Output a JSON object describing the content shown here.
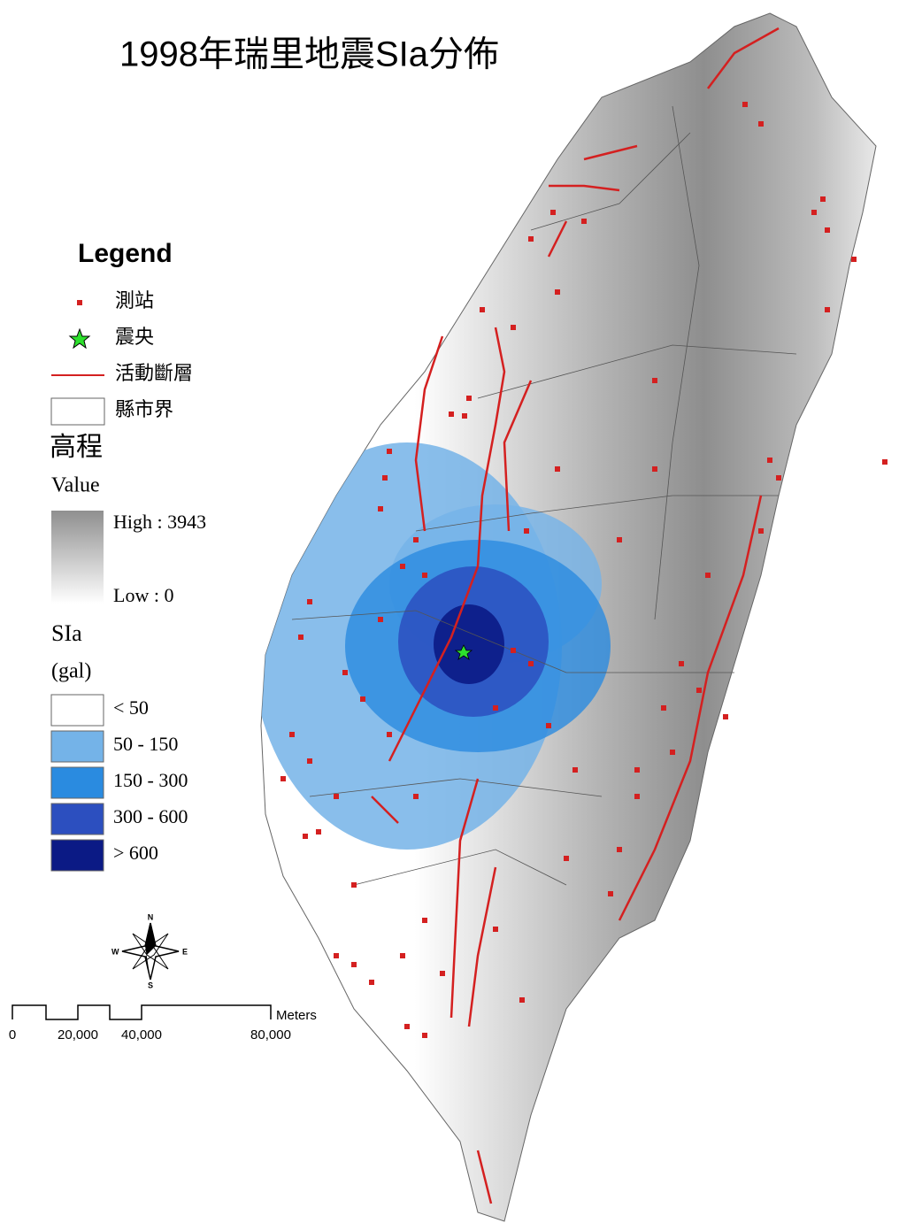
{
  "title": "1998年瑞里地震SIa分佈",
  "legend": {
    "title": "Legend",
    "items": [
      "測站",
      "震央",
      "活動斷層",
      "縣市界"
    ]
  },
  "elevation": {
    "title": "高程",
    "subtitle": "Value",
    "high": "High : 3943",
    "low": "Low : 0"
  },
  "sia": {
    "title": "SIa",
    "unit": "(gal)",
    "classes": [
      {
        "label": "< 50",
        "color": "#ffffff"
      },
      {
        "label": "50  - 150",
        "color": "#74b3e8"
      },
      {
        "label": "150 - 300",
        "color": "#2a8be0"
      },
      {
        "label": "300 - 600",
        "color": "#2c4fbf"
      },
      {
        "label": "> 600",
        "color": "#0b1a85"
      }
    ]
  },
  "compass": {
    "n": "N",
    "s": "S",
    "e": "E",
    "w": "W"
  },
  "scale_bar": {
    "unit": "Meters",
    "labels": [
      "0",
      "20,000",
      "40,000",
      "80,000"
    ]
  }
}
